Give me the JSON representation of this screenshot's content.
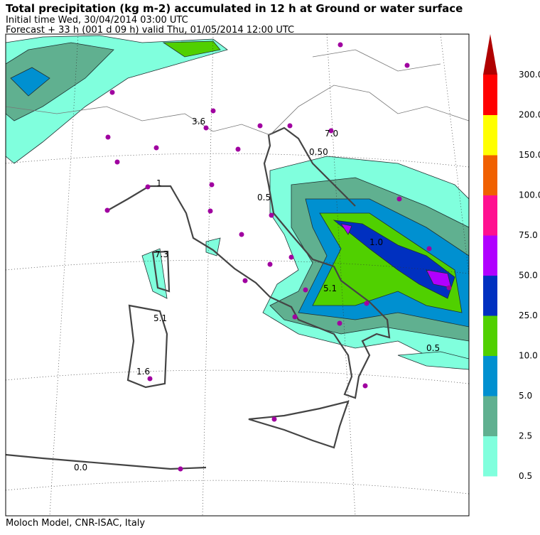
{
  "header": {
    "title": "Total precipitation (kg m-2) accumulated in  12 h at Ground or water surface",
    "initial_time": "Initial time  Wed, 30/04/2014  03:00 UTC",
    "forecast": "Forecast  +  33 h  (001 d 09 h)  valid Thu, 01/05/2014 12:00 UTC"
  },
  "map": {
    "labels": [
      "0.0",
      "1.6",
      "5.1",
      "7.3",
      "3.6",
      "1",
      "7.0",
      "0.50",
      "0.5",
      "0.5",
      "5.1",
      "1.0"
    ]
  },
  "colorbar": {
    "levels": [
      "0.5",
      "2.5",
      "5.0",
      "10.0",
      "25.0",
      "50.0",
      "75.0",
      "100.0",
      "150.0",
      "200.0",
      "300.0"
    ],
    "colors": [
      "#80ffdd",
      "#60b090",
      "#0090d0",
      "#50d000",
      "#0030c0",
      "#b000ff",
      "#ff1090",
      "#f06000",
      "#ffff00",
      "#ff0000"
    ],
    "over_color": "#b00000"
  },
  "footer": "Moloch Model, CNR-ISAC, Italy"
}
